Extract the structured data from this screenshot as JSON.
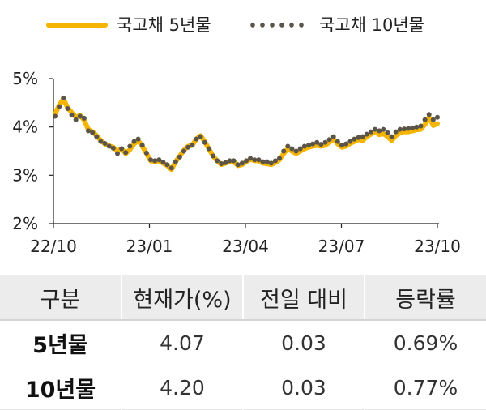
{
  "chart_data": {
    "type": "line",
    "title": "",
    "xlabel": "",
    "ylabel": "",
    "ylim": [
      2,
      5
    ],
    "yticks": [
      "2%",
      "3%",
      "4%",
      "5%"
    ],
    "xticks": [
      "22/10",
      "23/01",
      "23/04",
      "23/07",
      "23/10"
    ],
    "legend_position": "top",
    "series": [
      {
        "name": "국고채 5년물",
        "style": "solid",
        "color": "#f4b400",
        "values": [
          4.27,
          4.45,
          4.58,
          4.4,
          4.3,
          4.2,
          4.24,
          4.14,
          3.95,
          3.9,
          3.82,
          3.72,
          3.65,
          3.61,
          3.58,
          3.5,
          3.55,
          3.45,
          3.53,
          3.65,
          3.72,
          3.6,
          3.45,
          3.3,
          3.28,
          3.3,
          3.25,
          3.2,
          3.12,
          3.28,
          3.4,
          3.52,
          3.6,
          3.62,
          3.75,
          3.82,
          3.7,
          3.55,
          3.4,
          3.3,
          3.22,
          3.25,
          3.28,
          3.28,
          3.2,
          3.22,
          3.28,
          3.33,
          3.3,
          3.3,
          3.25,
          3.24,
          3.22,
          3.26,
          3.32,
          3.45,
          3.55,
          3.5,
          3.45,
          3.5,
          3.55,
          3.58,
          3.6,
          3.62,
          3.6,
          3.62,
          3.68,
          3.75,
          3.65,
          3.58,
          3.6,
          3.66,
          3.7,
          3.74,
          3.72,
          3.8,
          3.85,
          3.9,
          3.84,
          3.86,
          3.8,
          3.72,
          3.82,
          3.88,
          3.9,
          3.9,
          3.92,
          3.94,
          3.95,
          4.05,
          4.2,
          4.03,
          4.07
        ]
      },
      {
        "name": "국고채 10년물",
        "style": "dotted",
        "color": "#5b5449",
        "values": [
          4.22,
          4.42,
          4.6,
          4.38,
          4.25,
          4.15,
          4.22,
          4.18,
          3.92,
          3.88,
          3.8,
          3.7,
          3.66,
          3.6,
          3.56,
          3.45,
          3.55,
          3.47,
          3.6,
          3.7,
          3.75,
          3.62,
          3.46,
          3.32,
          3.3,
          3.32,
          3.27,
          3.22,
          3.15,
          3.28,
          3.38,
          3.5,
          3.58,
          3.62,
          3.75,
          3.8,
          3.68,
          3.55,
          3.4,
          3.3,
          3.24,
          3.26,
          3.3,
          3.3,
          3.22,
          3.25,
          3.3,
          3.35,
          3.32,
          3.32,
          3.28,
          3.28,
          3.25,
          3.3,
          3.35,
          3.5,
          3.6,
          3.55,
          3.5,
          3.55,
          3.6,
          3.62,
          3.65,
          3.68,
          3.64,
          3.68,
          3.74,
          3.8,
          3.7,
          3.62,
          3.65,
          3.7,
          3.75,
          3.78,
          3.8,
          3.85,
          3.9,
          3.95,
          3.92,
          3.95,
          3.88,
          3.8,
          3.9,
          3.95,
          3.96,
          3.97,
          3.98,
          4.0,
          4.02,
          4.15,
          4.26,
          4.15,
          4.2
        ]
      }
    ]
  },
  "table": {
    "headers": [
      "구분",
      "현재가(%)",
      "전일 대비",
      "등락률"
    ],
    "rows": [
      [
        "5년물",
        "4.07",
        "0.03",
        "0.69%"
      ],
      [
        "10년물",
        "4.20",
        "0.03",
        "0.77%"
      ]
    ]
  }
}
